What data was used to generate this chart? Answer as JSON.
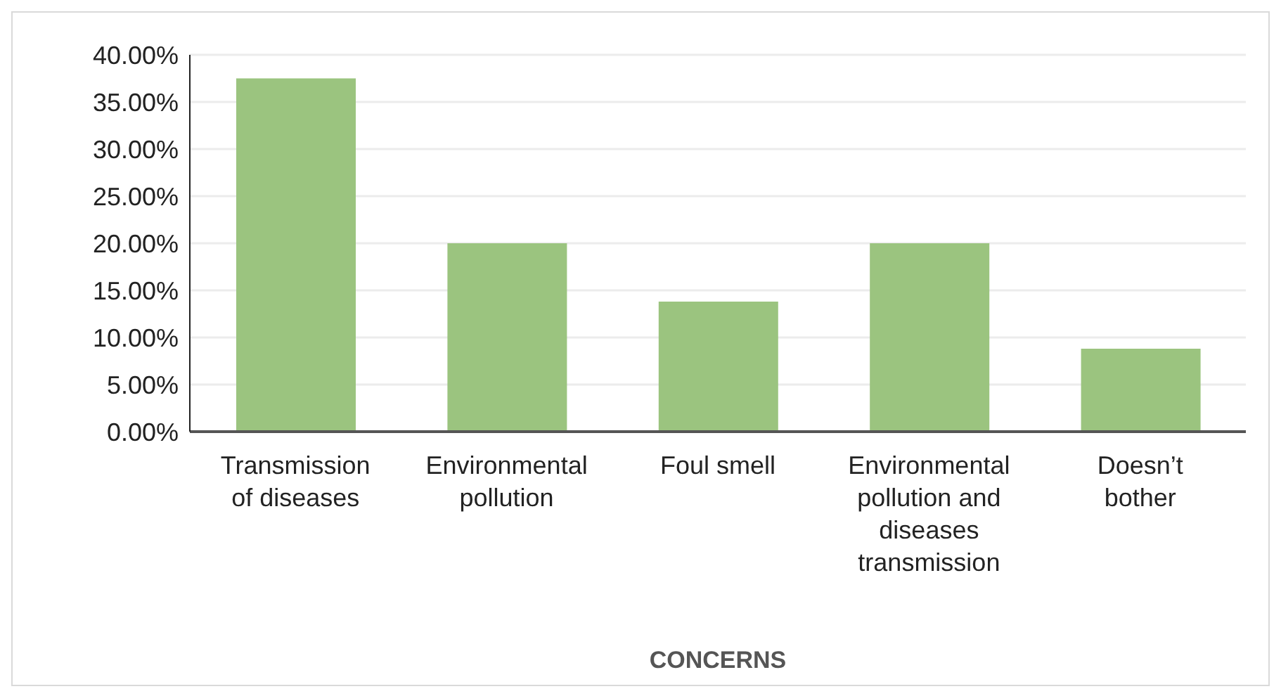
{
  "chart_data": {
    "type": "bar",
    "xlabel": "CONCERNS",
    "categories": [
      "Transmission of diseases",
      "Environmental pollution",
      "Foul smell",
      "Environmental pollution and diseases transmission",
      "Doesn’t bother"
    ],
    "values": [
      37.5,
      20,
      13.8,
      20,
      8.8
    ],
    "color": "#9bc47f",
    "ylim": [
      0,
      40
    ],
    "yticks": [
      {
        "value": 0,
        "label": "0.00%"
      },
      {
        "value": 5,
        "label": "5.00%"
      },
      {
        "value": 10,
        "label": "10.00%"
      },
      {
        "value": 15,
        "label": "15.00%"
      },
      {
        "value": 20,
        "label": "20.00%"
      },
      {
        "value": 25,
        "label": "25.00%"
      },
      {
        "value": 30,
        "label": "30.00%"
      },
      {
        "value": 35,
        "label": "35.00%"
      },
      {
        "value": 40,
        "label": "40.00%"
      }
    ],
    "grid": "y"
  }
}
